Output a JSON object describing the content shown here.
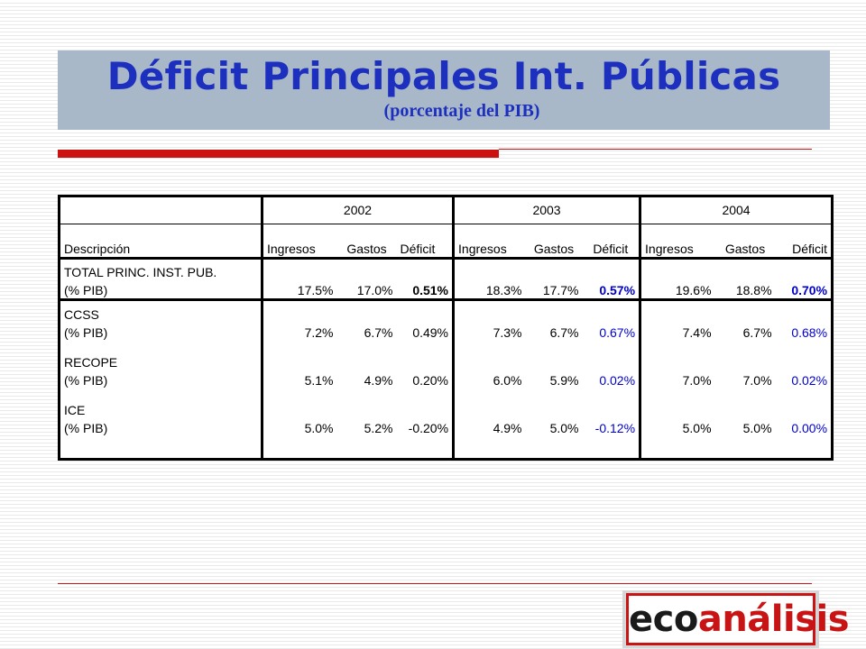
{
  "title": "Déficit Principales Int. Públicas",
  "subtitle": "(porcentaje del PIB)",
  "table": {
    "years": [
      "2002",
      "2003",
      "2004"
    ],
    "header_desc": "Descripción",
    "sub_headers": [
      "Ingresos",
      "Gastos",
      "Déficit"
    ],
    "rows": [
      {
        "line1": "TOTAL PRINC. INST. PUB.",
        "line2": "(% PIB)",
        "values": [
          "17.5%",
          "17.0%",
          "0.51%",
          "18.3%",
          "17.7%",
          "0.57%",
          "19.6%",
          "18.8%",
          "0.70%"
        ]
      },
      {
        "line1": "CCSS",
        "line2": "(% PIB)",
        "values": [
          "7.2%",
          "6.7%",
          "0.49%",
          "7.3%",
          "6.7%",
          "0.67%",
          "7.4%",
          "6.7%",
          "0.68%"
        ]
      },
      {
        "line1": "RECOPE",
        "line2": "(% PIB)",
        "values": [
          "5.1%",
          "4.9%",
          "0.20%",
          "6.0%",
          "5.9%",
          "0.02%",
          "7.0%",
          "7.0%",
          "0.02%"
        ]
      },
      {
        "line1": "ICE",
        "line2": "(% PIB)",
        "values": [
          "5.0%",
          "5.2%",
          "-0.20%",
          "4.9%",
          "5.0%",
          "-0.12%",
          "5.0%",
          "5.0%",
          "0.00%"
        ]
      }
    ]
  },
  "logo": {
    "part1": "eco",
    "part2": "análisis"
  },
  "colors": {
    "title": "#1c2fbf",
    "band": "#a9b8c8",
    "rule": "#cc1111",
    "deficit_blue": "#0000cc",
    "logo_red": "#c81414"
  }
}
